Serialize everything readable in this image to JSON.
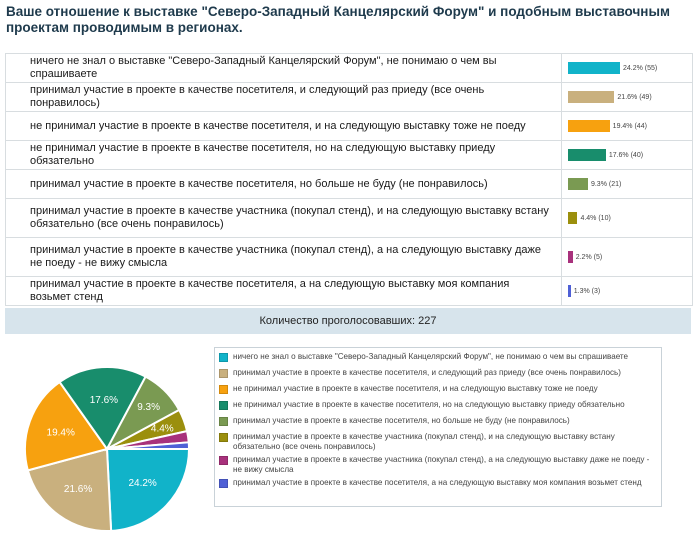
{
  "title": "Ваше отношение к выставке \"Северо-Западный Канцелярский Форум\" и подобным выставочным проектам проводимым в регионах.",
  "options": [
    {
      "label": "ничего не знал о выставке \"Северо-Западный Канцелярский Форум\", не понимаю о чем вы спрашиваете",
      "result": "24.2% (55)",
      "percent": 24.2,
      "color": "#11b3c9",
      "pie_label": "24.2%"
    },
    {
      "label": "принимал участие в проекте в качестве посетителя, и следующий раз приеду (все очень понравилось)",
      "result": "21.6% (49)",
      "percent": 21.6,
      "color": "#c9b07e",
      "pie_label": "21.6%"
    },
    {
      "label": "не принимал участие в проекте в качестве посетителя, и на следующую выставку тоже не поеду",
      "result": "19.4% (44)",
      "percent": 19.4,
      "color": "#f7a10f",
      "pie_label": "19.4%"
    },
    {
      "label": "не принимал участие в проекте в качестве посетителя, но на следующую выставку приеду обязательно",
      "result": "17.6% (40)",
      "percent": 17.6,
      "color": "#188d6c",
      "pie_label": "17.6%"
    },
    {
      "label": "принимал участие в проекте в качестве посетителя, но больше не буду (не понравилось)",
      "result": "9.3% (21)",
      "percent": 9.3,
      "color": "#7a9a52",
      "pie_label": "9.3%"
    },
    {
      "label": "принимал участие в проекте в качестве участника (покупал стенд), и на следующую выставку встану обязательно (все очень понравилось)",
      "result": "4.4% (10)",
      "percent": 4.4,
      "color": "#9b8f0d",
      "pie_label": "4.4%"
    },
    {
      "label": "принимал участие в проекте в качестве участника (покупал стенд), а на следующую выставку даже не поеду - не вижу смысла",
      "result": "2.2% (5)",
      "percent": 2.2,
      "color": "#a8317c",
      "pie_label": ""
    },
    {
      "label": "принимал участие в проекте в качестве посетителя, а на следующую выставку моя компания возьмет стенд",
      "result": "1.3% (3)",
      "percent": 1.3,
      "color": "#4f60d6",
      "pie_label": ""
    }
  ],
  "footer": "Количество проголосовавших: 227",
  "chart_data": {
    "type": "pie",
    "categories": [
      "ничего не знал о выставке \"Северо-Западный Канцелярский Форум\", не понимаю о чем вы спрашиваете",
      "принимал участие в проекте в качестве посетителя, и следующий раз приеду (все очень понравилось)",
      "не принимал участие в проекте в качестве посетителя, и на следующую выставку тоже не поеду",
      "не принимал участие в проекте в качестве посетителя, но на следующую выставку приеду обязательно",
      "принимал участие в проекте в качестве посетителя, но больше не буду (не понравилось)",
      "принимал участие в проекте в качестве участника (покупал стенд), и на следующую выставку встану обязательно (все очень понравилось)",
      "принимал участие в проекте в качестве участника (покупал стенд), а на следующую выставку даже не поеду - не вижу смысла",
      "принимал участие в проекте в качестве посетителя, а на следующую выставку моя компания возьмет стенд"
    ],
    "values": [
      24.2,
      21.6,
      19.4,
      17.6,
      9.3,
      4.4,
      2.2,
      1.3
    ],
    "counts": [
      55,
      49,
      44,
      40,
      21,
      10,
      5,
      3
    ],
    "colors": [
      "#11b3c9",
      "#c9b07e",
      "#f7a10f",
      "#188d6c",
      "#7a9a52",
      "#9b8f0d",
      "#a8317c",
      "#4f60d6"
    ],
    "legend_position": "right"
  }
}
